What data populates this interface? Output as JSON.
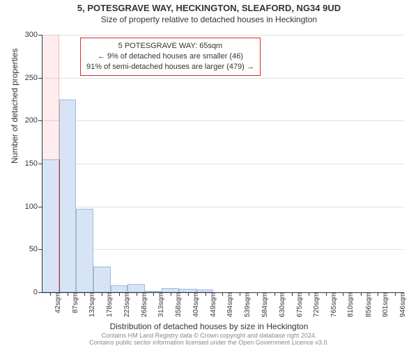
{
  "title": "5, POTESGRAVE WAY, HECKINGTON, SLEAFORD, NG34 9UD",
  "subtitle": "Size of property relative to detached houses in Heckington",
  "y_axis_label": "Number of detached properties",
  "x_axis_label": "Distribution of detached houses by size in Heckington",
  "attribution_line1": "Contains HM Land Registry data © Crown copyright and database right 2024.",
  "attribution_line2": "Contains public sector information licensed under the Open Government Licence v3.0.",
  "chart": {
    "type": "histogram",
    "background_color": "#ffffff",
    "grid_color": "#e0e0e0",
    "axis_color": "#333333",
    "bar_fill": "#d6e4f5",
    "bar_border": "#9fb8d9",
    "highlight_fill": "rgba(255,30,30,0.08)",
    "highlight_border": "rgba(255,0,0,0.25)",
    "marker_color": "#d62b2b",
    "x_min": 20,
    "x_max": 970,
    "y_min": 0,
    "y_max": 300,
    "y_ticks": [
      0,
      50,
      100,
      150,
      200,
      250,
      300
    ],
    "x_tick_values": [
      42,
      87,
      132,
      178,
      223,
      268,
      313,
      358,
      404,
      449,
      494,
      539,
      584,
      630,
      675,
      720,
      765,
      810,
      856,
      901,
      946
    ],
    "x_tick_unit": "sqm",
    "bin_width": 45,
    "bins": [
      {
        "start": 20,
        "count": 155
      },
      {
        "start": 65,
        "count": 225
      },
      {
        "start": 110,
        "count": 97
      },
      {
        "start": 155,
        "count": 30
      },
      {
        "start": 200,
        "count": 8
      },
      {
        "start": 245,
        "count": 10
      },
      {
        "start": 290,
        "count": 2
      },
      {
        "start": 335,
        "count": 5
      },
      {
        "start": 380,
        "count": 4
      },
      {
        "start": 425,
        "count": 3
      },
      {
        "start": 470,
        "count": 0
      },
      {
        "start": 515,
        "count": 0
      },
      {
        "start": 560,
        "count": 0
      },
      {
        "start": 605,
        "count": 0
      },
      {
        "start": 650,
        "count": 0
      },
      {
        "start": 695,
        "count": 0
      },
      {
        "start": 740,
        "count": 0
      },
      {
        "start": 785,
        "count": 0
      },
      {
        "start": 830,
        "count": 0
      },
      {
        "start": 875,
        "count": 0
      },
      {
        "start": 920,
        "count": 0
      }
    ],
    "highlight": {
      "start": 20,
      "end": 65
    },
    "marker_x": 65,
    "marker_height_value": 155
  },
  "annotation": {
    "line1": "5 POTESGRAVE WAY: 65sqm",
    "line2": "← 9% of detached houses are smaller (46)",
    "line3": "91% of semi-detached houses are larger (479) →",
    "border_color": "#d62b2b",
    "background": "#ffffff",
    "fontsize": 11
  }
}
